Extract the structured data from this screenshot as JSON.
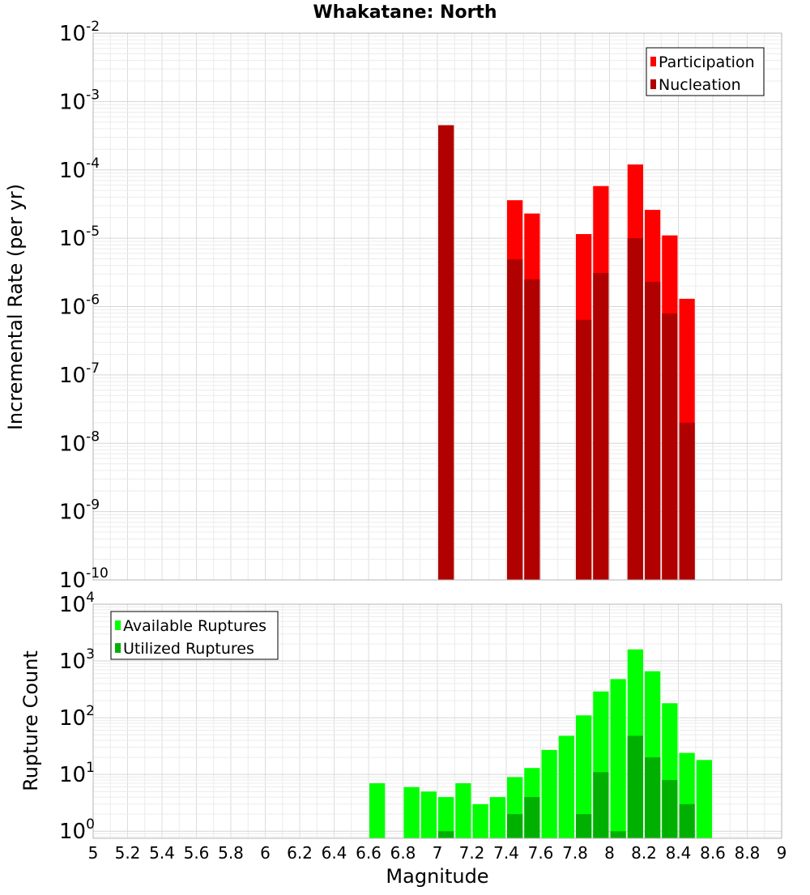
{
  "chart_data": [
    {
      "type": "bar",
      "title": "Whakatane: North",
      "ylabel": "Incremental Rate (per yr)",
      "xlabel": "",
      "x_scale": "linear",
      "y_scale": "log",
      "xlim": [
        5,
        9
      ],
      "ylim": [
        1e-10,
        0.01
      ],
      "y_ticks": [
        {
          "base": "10",
          "exp": "-2",
          "value": 0.01
        },
        {
          "base": "10",
          "exp": "-3",
          "value": 0.001
        },
        {
          "base": "10",
          "exp": "-4",
          "value": 0.0001
        },
        {
          "base": "10",
          "exp": "-5",
          "value": 1e-05
        },
        {
          "base": "10",
          "exp": "-6",
          "value": 1e-06
        },
        {
          "base": "10",
          "exp": "-7",
          "value": 1e-07
        },
        {
          "base": "10",
          "exp": "-8",
          "value": 1e-08
        },
        {
          "base": "10",
          "exp": "-9",
          "value": 1e-09
        },
        {
          "base": "10",
          "exp": "-10",
          "value": 1e-10
        }
      ],
      "grid": true,
      "legend_position": "top-right",
      "series": [
        {
          "name": "Participation",
          "color": "#ff0000",
          "x": [
            7.05,
            7.45,
            7.55,
            7.85,
            7.95,
            8.15,
            8.25,
            8.35,
            8.45
          ],
          "values": [
            0.00045,
            3.6e-05,
            2.3e-05,
            1.15e-05,
            5.8e-05,
            0.00012,
            2.6e-05,
            1.1e-05,
            1.3e-06
          ]
        },
        {
          "name": "Nucleation",
          "color": "#b00000",
          "x": [
            7.05,
            7.45,
            7.55,
            7.85,
            7.95,
            8.15,
            8.25,
            8.35,
            8.45
          ],
          "values": [
            0.00045,
            4.9e-06,
            2.5e-06,
            6.4e-07,
            3.1e-06,
            1e-05,
            2.3e-06,
            7.9e-07,
            2e-08
          ]
        }
      ]
    },
    {
      "type": "bar",
      "title": "",
      "ylabel": "Rupture Count",
      "xlabel": "Magnitude",
      "x_scale": "linear",
      "y_scale": "log",
      "xlim": [
        5,
        9
      ],
      "ylim": [
        0.75,
        10000
      ],
      "x_ticks": [
        "5",
        "5.2",
        "5.4",
        "5.6",
        "5.8",
        "6",
        "6.2",
        "6.4",
        "6.6",
        "6.8",
        "7",
        "7.2",
        "7.4",
        "7.6",
        "7.8",
        "8",
        "8.2",
        "8.4",
        "8.6",
        "8.8",
        "9"
      ],
      "y_ticks": [
        {
          "base": "10",
          "exp": "4",
          "value": 10000
        },
        {
          "base": "10",
          "exp": "3",
          "value": 1000
        },
        {
          "base": "10",
          "exp": "2",
          "value": 100
        },
        {
          "base": "10",
          "exp": "1",
          "value": 10
        },
        {
          "base": "10",
          "exp": "0",
          "value": 1
        }
      ],
      "grid": true,
      "legend_position": "top-left",
      "series": [
        {
          "name": "Available Ruptures",
          "color": "#00ff00",
          "x": [
            6.65,
            6.85,
            6.95,
            7.05,
            7.15,
            7.25,
            7.35,
            7.45,
            7.55,
            7.65,
            7.75,
            7.85,
            7.95,
            8.05,
            8.15,
            8.25,
            8.35,
            8.45,
            8.55
          ],
          "values": [
            7,
            6,
            5,
            4,
            7,
            3,
            4,
            9,
            13,
            27,
            48,
            110,
            290,
            480,
            1600,
            660,
            180,
            24,
            18
          ]
        },
        {
          "name": "Utilized Ruptures",
          "color": "#00b000",
          "x": [
            7.05,
            7.45,
            7.55,
            7.85,
            7.95,
            8.05,
            8.15,
            8.25,
            8.35,
            8.45
          ],
          "values": [
            1,
            2,
            4,
            2,
            11,
            1,
            48,
            20,
            8,
            3
          ]
        }
      ]
    }
  ]
}
